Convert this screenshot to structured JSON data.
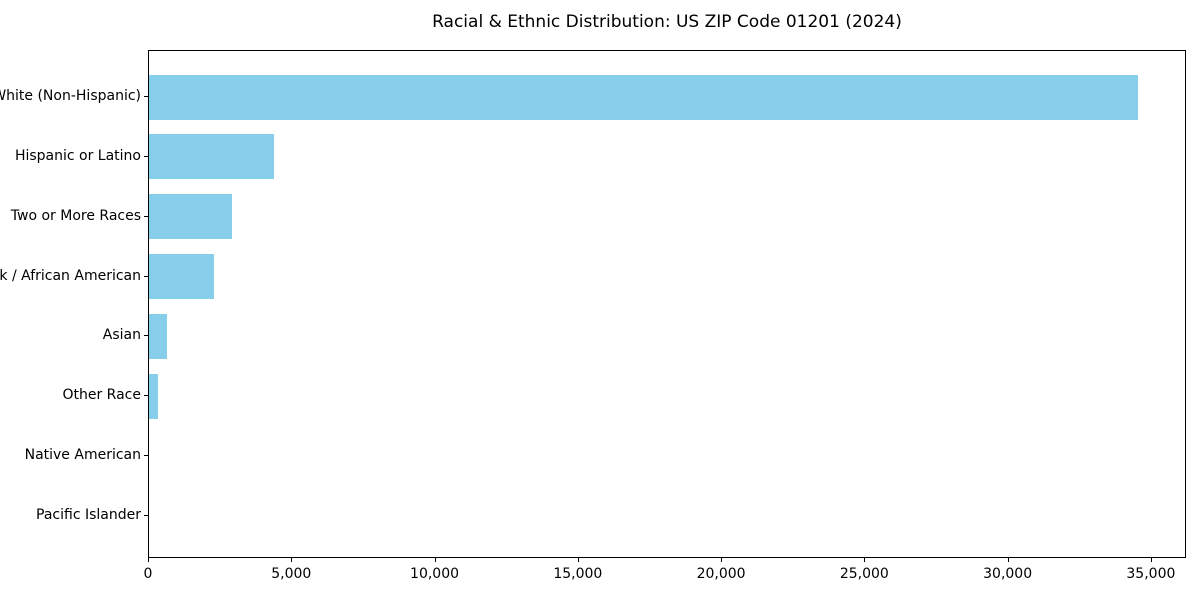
{
  "chart_data": {
    "type": "bar",
    "orientation": "horizontal",
    "title": "Racial & Ethnic Distribution: US ZIP Code 01201 (2024)",
    "categories": [
      "White (Non-Hispanic)",
      "Hispanic or Latino",
      "Two or More Races",
      "Black / African American",
      "Asian",
      "Other Race",
      "Native American",
      "Pacific Islander"
    ],
    "values": [
      34500,
      4370,
      2900,
      2280,
      620,
      300,
      0,
      0
    ],
    "xlabel": "",
    "ylabel": "",
    "xlim": [
      0,
      36225
    ],
    "xticks": [
      0,
      5000,
      10000,
      15000,
      20000,
      25000,
      30000,
      35000
    ],
    "xtick_labels": [
      "0",
      "5,000",
      "10,000",
      "15,000",
      "20,000",
      "25,000",
      "30,000",
      "35,000"
    ],
    "bar_color": "#87CEEB",
    "grid": false,
    "legend": null
  }
}
